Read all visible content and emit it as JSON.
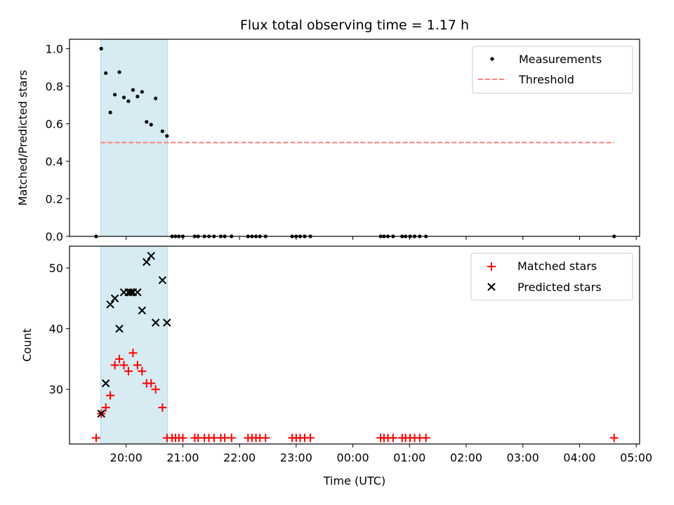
{
  "chart_data": {
    "title": "Flux total observing time = 1.17 h",
    "type": "scatter",
    "shared_x": {
      "label": "Time (UTC)",
      "unit": "hours since 19:00 UTC",
      "range": [
        0.0,
        10.06
      ],
      "ticks": [
        1,
        2,
        3,
        4,
        5,
        6,
        7,
        8,
        9,
        10
      ],
      "tick_labels": [
        "20:00",
        "21:00",
        "22:00",
        "23:00",
        "00:00",
        "01:00",
        "02:00",
        "03:00",
        "04:00",
        "05:00"
      ]
    },
    "highlight_span": {
      "x": [
        0.55,
        1.73
      ],
      "color": "#add8e6"
    },
    "subplots": [
      {
        "ylabel": "Matched/Predicted stars",
        "ylim": [
          0,
          1.05
        ],
        "yticks": [
          0.0,
          0.2,
          0.4,
          0.6,
          0.8,
          1.0
        ],
        "ytick_labels": [
          "0.0",
          "0.2",
          "0.4",
          "0.6",
          "0.8",
          "1.0"
        ],
        "legend": {
          "position": "top-right",
          "entries": [
            "Measurements",
            "Threshold"
          ]
        },
        "series": [
          {
            "name": "Measurements",
            "marker": "dot",
            "color": "#000000",
            "points": [
              [
                0.47,
                0.0
              ],
              [
                0.56,
                1.0
              ],
              [
                0.64,
                0.87
              ],
              [
                0.72,
                0.66
              ],
              [
                0.8,
                0.755
              ],
              [
                0.88,
                0.875
              ],
              [
                0.96,
                0.74
              ],
              [
                1.04,
                0.72
              ],
              [
                1.12,
                0.78
              ],
              [
                1.2,
                0.745
              ],
              [
                1.28,
                0.77
              ],
              [
                1.36,
                0.61
              ],
              [
                1.44,
                0.595
              ],
              [
                1.52,
                0.735
              ],
              [
                1.64,
                0.56
              ],
              [
                1.72,
                0.535
              ],
              [
                1.81,
                0.0
              ],
              [
                1.87,
                0.0
              ],
              [
                1.93,
                0.0
              ],
              [
                2.0,
                0.0
              ],
              [
                2.21,
                0.0
              ],
              [
                2.27,
                0.0
              ],
              [
                2.38,
                0.0
              ],
              [
                2.46,
                0.0
              ],
              [
                2.55,
                0.0
              ],
              [
                2.67,
                0.0
              ],
              [
                2.74,
                0.0
              ],
              [
                2.86,
                0.0
              ],
              [
                3.15,
                0.0
              ],
              [
                3.22,
                0.0
              ],
              [
                3.29,
                0.0
              ],
              [
                3.36,
                0.0
              ],
              [
                3.46,
                0.0
              ],
              [
                3.93,
                0.0
              ],
              [
                4.0,
                0.0
              ],
              [
                4.07,
                0.0
              ],
              [
                4.15,
                0.0
              ],
              [
                4.25,
                0.0
              ],
              [
                5.49,
                0.0
              ],
              [
                5.55,
                0.0
              ],
              [
                5.62,
                0.0
              ],
              [
                5.71,
                0.0
              ],
              [
                5.87,
                0.0
              ],
              [
                5.93,
                0.0
              ],
              [
                6.01,
                0.0
              ],
              [
                6.09,
                0.0
              ],
              [
                6.18,
                0.0
              ],
              [
                6.29,
                0.0
              ],
              [
                9.61,
                0.0
              ]
            ]
          },
          {
            "name": "Threshold",
            "style": "dashed",
            "color": "#ff7f7f",
            "x": [
              0.55,
              9.61
            ],
            "y": [
              0.5,
              0.5
            ]
          }
        ]
      },
      {
        "ylabel": "Count",
        "ylim": [
          21.0,
          53.6
        ],
        "yticks": [
          30,
          40,
          50
        ],
        "ytick_labels": [
          "30",
          "40",
          "50"
        ],
        "legend": {
          "position": "top-right",
          "entries": [
            "Matched stars",
            "Predicted stars"
          ]
        },
        "series": [
          {
            "name": "Matched stars",
            "marker": "plus",
            "color": "#ff0000",
            "points": [
              [
                0.47,
                22
              ],
              [
                0.56,
                26
              ],
              [
                0.64,
                27
              ],
              [
                0.72,
                29
              ],
              [
                0.8,
                34
              ],
              [
                0.88,
                35
              ],
              [
                0.96,
                34
              ],
              [
                1.04,
                33
              ],
              [
                1.12,
                36
              ],
              [
                1.2,
                34
              ],
              [
                1.28,
                33
              ],
              [
                1.36,
                31
              ],
              [
                1.44,
                31
              ],
              [
                1.52,
                30
              ],
              [
                1.64,
                27
              ],
              [
                1.72,
                22
              ],
              [
                1.81,
                22
              ],
              [
                1.87,
                22
              ],
              [
                1.93,
                22
              ],
              [
                2.0,
                22
              ],
              [
                2.21,
                22
              ],
              [
                2.27,
                22
              ],
              [
                2.38,
                22
              ],
              [
                2.46,
                22
              ],
              [
                2.55,
                22
              ],
              [
                2.67,
                22
              ],
              [
                2.74,
                22
              ],
              [
                2.86,
                22
              ],
              [
                3.15,
                22
              ],
              [
                3.22,
                22
              ],
              [
                3.29,
                22
              ],
              [
                3.36,
                22
              ],
              [
                3.46,
                22
              ],
              [
                3.93,
                22
              ],
              [
                4.0,
                22
              ],
              [
                4.07,
                22
              ],
              [
                4.15,
                22
              ],
              [
                4.25,
                22
              ],
              [
                5.49,
                22
              ],
              [
                5.55,
                22
              ],
              [
                5.62,
                22
              ],
              [
                5.71,
                22
              ],
              [
                5.87,
                22
              ],
              [
                5.93,
                22
              ],
              [
                6.01,
                22
              ],
              [
                6.09,
                22
              ],
              [
                6.18,
                22
              ],
              [
                6.29,
                22
              ],
              [
                9.61,
                22
              ]
            ]
          },
          {
            "name": "Predicted stars",
            "marker": "x",
            "color": "#000000",
            "points": [
              [
                0.56,
                26
              ],
              [
                0.64,
                31
              ],
              [
                0.72,
                44
              ],
              [
                0.8,
                45
              ],
              [
                0.88,
                40
              ],
              [
                0.96,
                46
              ],
              [
                1.04,
                46
              ],
              [
                1.08,
                46
              ],
              [
                1.12,
                46
              ],
              [
                1.2,
                46
              ],
              [
                1.28,
                43
              ],
              [
                1.36,
                51
              ],
              [
                1.44,
                52
              ],
              [
                1.52,
                41
              ],
              [
                1.64,
                48
              ],
              [
                1.72,
                41
              ]
            ]
          }
        ]
      }
    ]
  }
}
